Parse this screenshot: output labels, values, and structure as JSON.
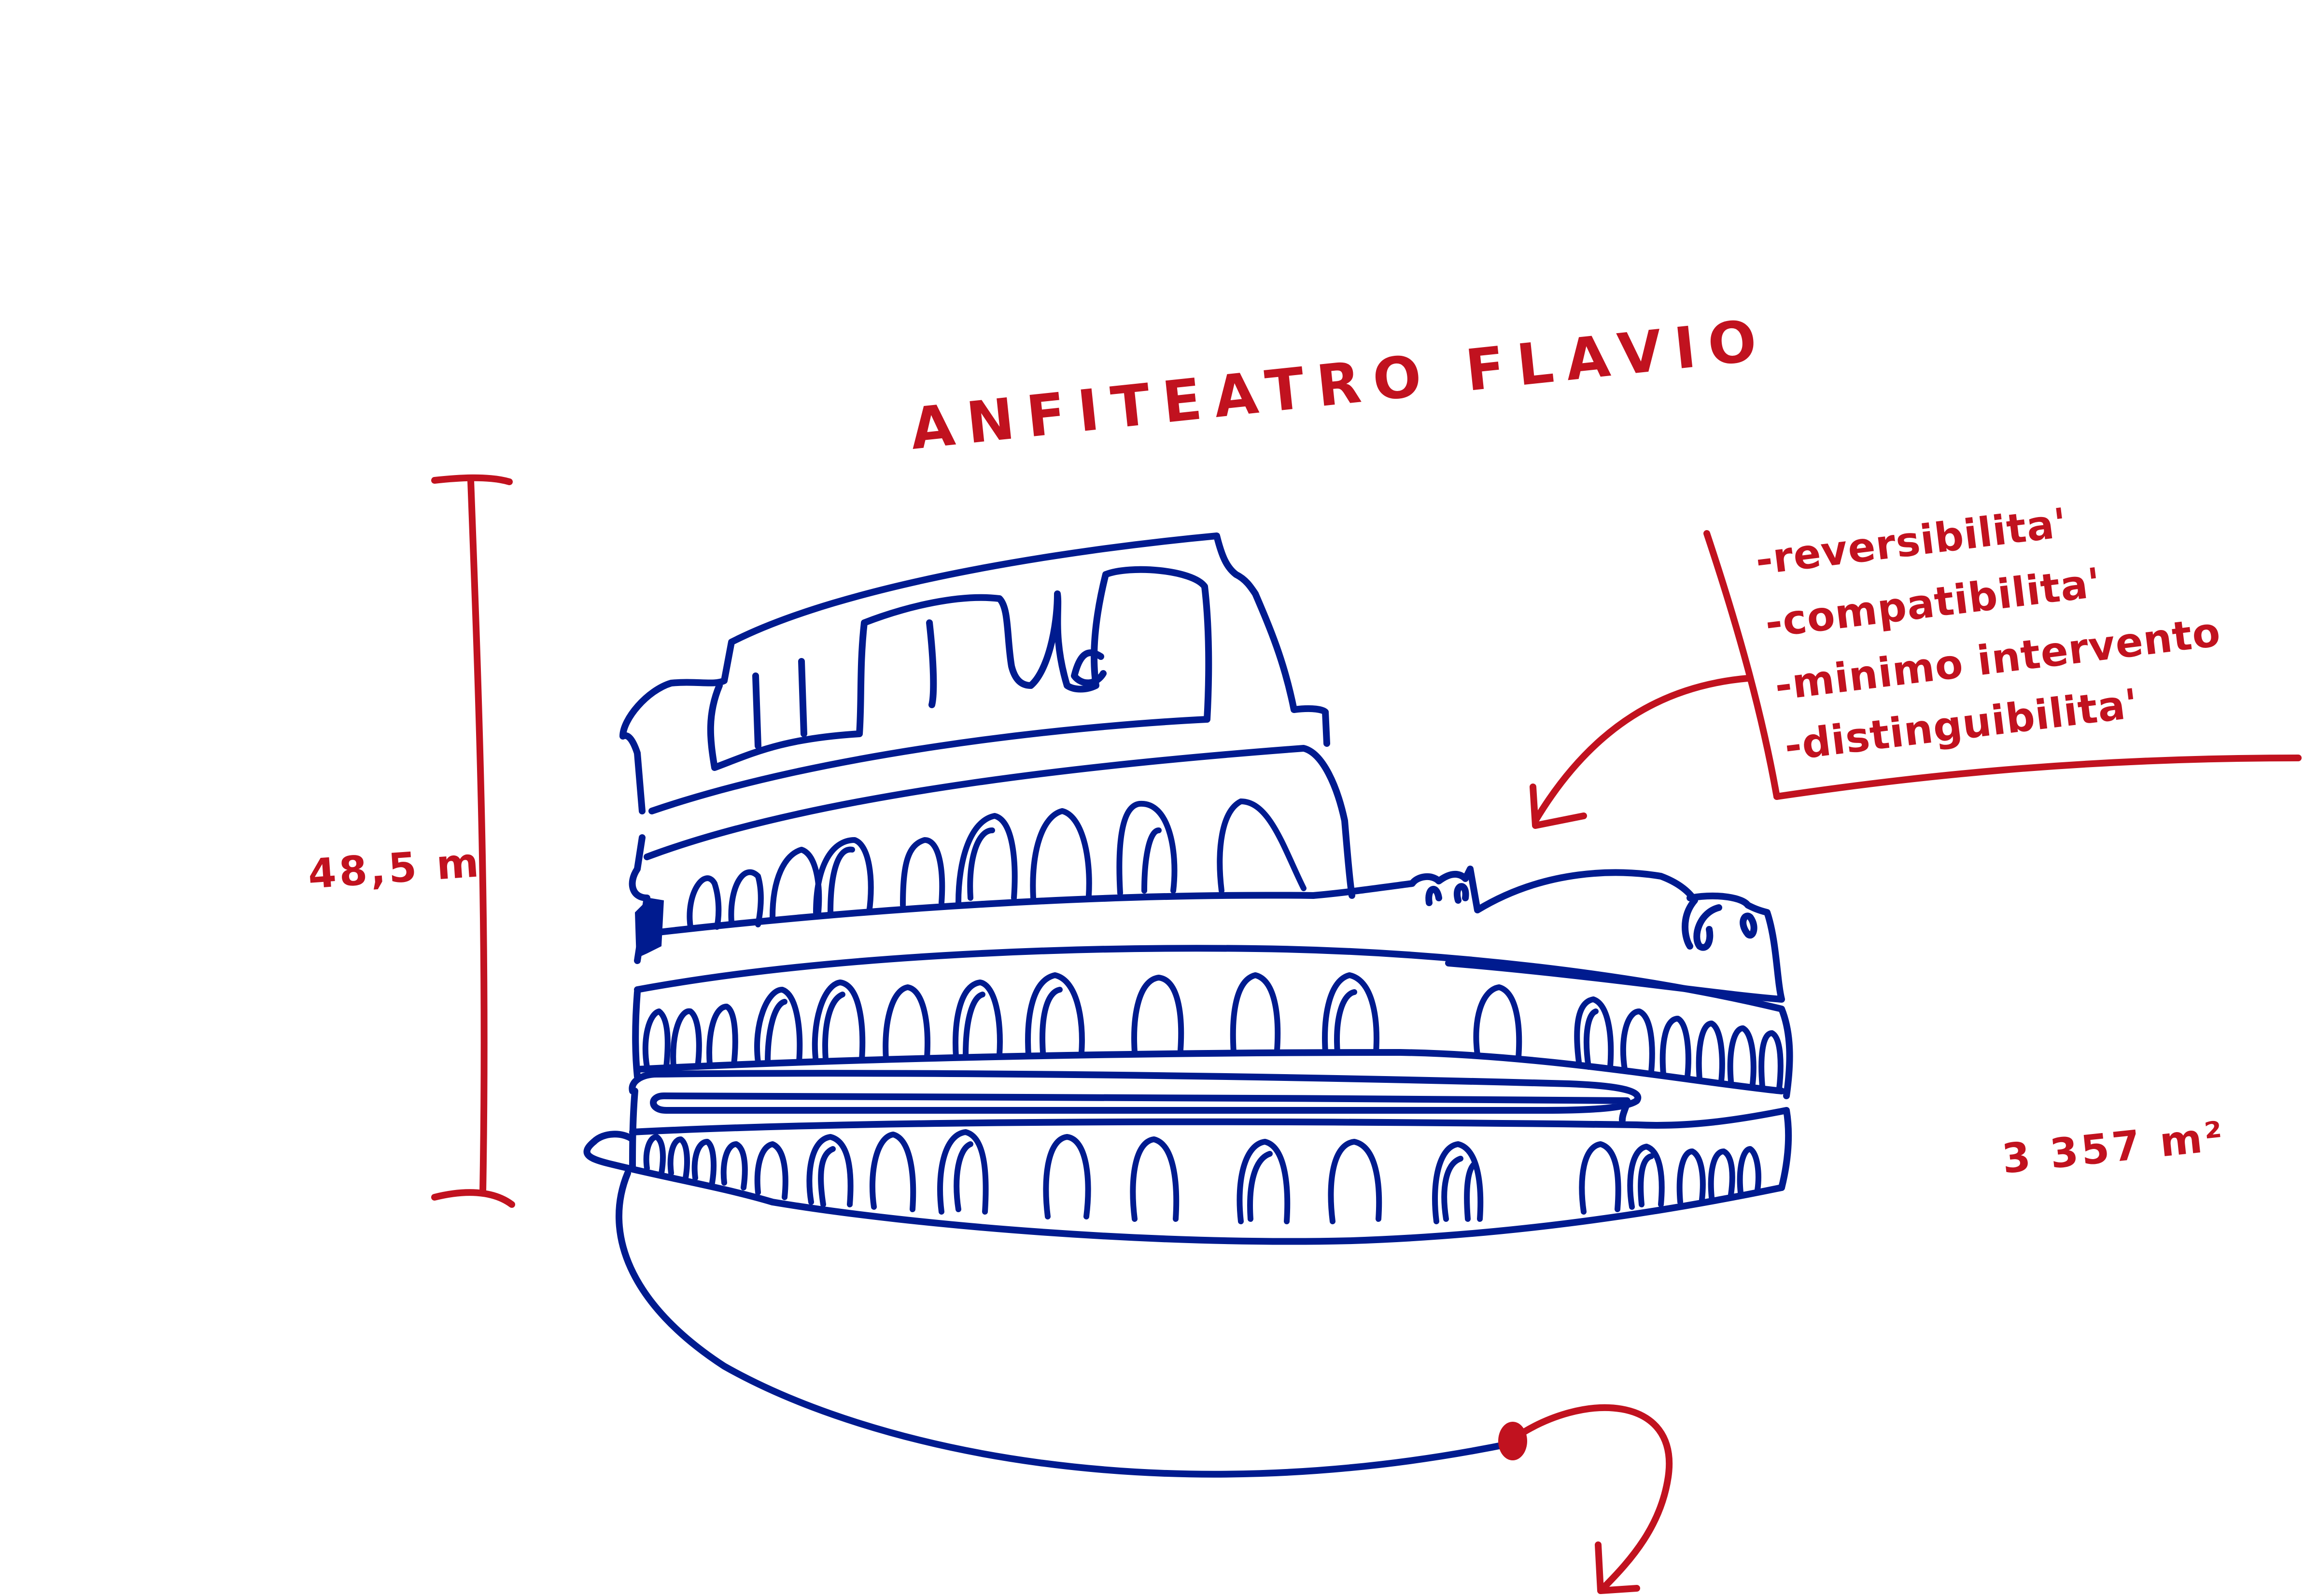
{
  "title": "ANFITEATRO FLAVIO",
  "height_label": "48,5 m",
  "area_label": "3 357 m²",
  "principles": [
    "-reversibilita'",
    "-compatibilita'",
    "-minimo intervento",
    "-distinguibilita'"
  ],
  "colors": {
    "annotation": "#c1121f",
    "drawing": "#001b8f",
    "background": "#ffffff"
  },
  "icons": {
    "height_bracket": "i-beam-bracket",
    "building": "colosseum-line-drawing",
    "pointer": "curved-arrow",
    "continuation": "curved-arrow-down"
  }
}
